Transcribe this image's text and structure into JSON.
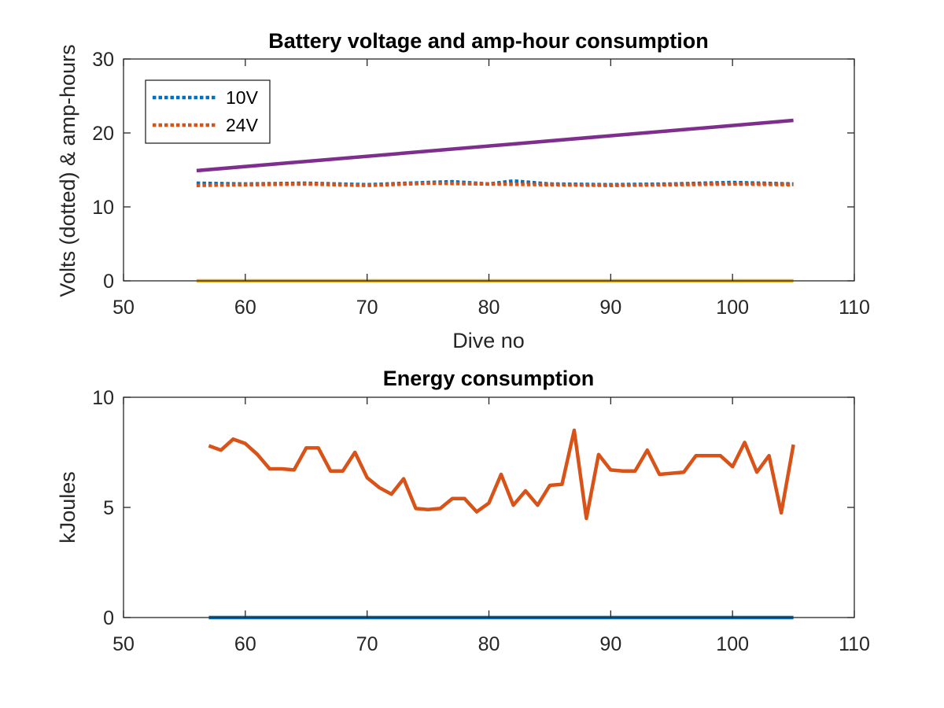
{
  "chart_data": [
    {
      "type": "line",
      "title": "Battery voltage and amp-hour consumption",
      "xlabel": "Dive no",
      "ylabel": "Volts (dotted) & amp-hours",
      "xlim": [
        50,
        110
      ],
      "ylim": [
        0,
        30
      ],
      "xticks": [
        50,
        60,
        70,
        80,
        90,
        100,
        110
      ],
      "yticks": [
        0,
        10,
        20,
        30
      ],
      "grid": false,
      "legend_position": "top-left",
      "series": [
        {
          "name": "10V",
          "style": "dotted",
          "color": "#0072BD",
          "x": [
            56,
            60,
            65,
            70,
            75,
            77,
            80,
            82,
            85,
            90,
            95,
            100,
            105
          ],
          "y": [
            13.2,
            13.1,
            13.2,
            13.0,
            13.3,
            13.4,
            13.1,
            13.5,
            13.1,
            13.0,
            13.1,
            13.3,
            13.1
          ]
        },
        {
          "name": "24V",
          "style": "dotted",
          "color": "#D95319",
          "x": [
            56,
            60,
            65,
            70,
            75,
            80,
            85,
            90,
            95,
            100,
            105
          ],
          "y": [
            12.9,
            13.0,
            13.1,
            12.9,
            13.2,
            13.1,
            13.0,
            12.9,
            13.0,
            13.1,
            13.0
          ]
        },
        {
          "style": "solid",
          "color": "#EDB120",
          "x": [
            56,
            105
          ],
          "y": [
            0,
            0
          ]
        },
        {
          "style": "solid",
          "color": "#7E2F8E",
          "x": [
            56,
            105
          ],
          "y": [
            14.9,
            21.7
          ]
        }
      ]
    },
    {
      "type": "line",
      "title": "Energy consumption",
      "xlabel": "",
      "ylabel": "kJoules",
      "xlim": [
        50,
        110
      ],
      "ylim": [
        0,
        10
      ],
      "xticks": [
        50,
        60,
        70,
        80,
        90,
        100,
        110
      ],
      "yticks": [
        0,
        5,
        10
      ],
      "grid": false,
      "series": [
        {
          "style": "solid",
          "color": "#D95319",
          "x": [
            57,
            58,
            59,
            60,
            61,
            62,
            63,
            64,
            65,
            66,
            67,
            68,
            69,
            70,
            71,
            72,
            73,
            74,
            75,
            76,
            77,
            78,
            79,
            80,
            81,
            82,
            83,
            84,
            85,
            86,
            87,
            88,
            89,
            90,
            91,
            92,
            93,
            94,
            95,
            96,
            97,
            98,
            99,
            100,
            101,
            102,
            103,
            104,
            105
          ],
          "y": [
            7.8,
            7.6,
            8.1,
            7.9,
            7.4,
            6.75,
            6.75,
            6.7,
            7.7,
            7.7,
            6.65,
            6.65,
            7.5,
            6.35,
            5.9,
            5.6,
            6.3,
            4.95,
            4.9,
            4.95,
            5.4,
            5.4,
            4.8,
            5.2,
            6.5,
            5.1,
            5.75,
            5.1,
            6.0,
            6.05,
            8.5,
            4.5,
            7.4,
            6.7,
            6.65,
            6.65,
            7.6,
            6.5,
            6.55,
            6.6,
            7.35,
            7.35,
            7.35,
            6.85,
            7.95,
            6.6,
            7.35,
            4.75,
            7.85
          ]
        },
        {
          "style": "solid",
          "color": "#0072BD",
          "x": [
            57,
            105
          ],
          "y": [
            0,
            0
          ]
        }
      ]
    }
  ]
}
